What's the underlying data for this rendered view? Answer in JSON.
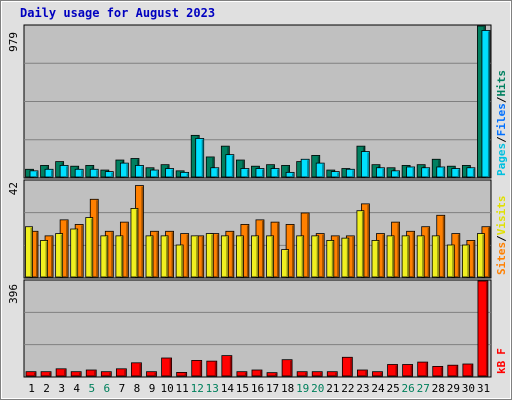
{
  "colors": {
    "frame_bg": "#e0e0e0",
    "plot_bg": "#c0c0c0",
    "grid": "#808080",
    "title": "#0000c0",
    "hits": "#008060",
    "files": "#00e0ff",
    "pages": "#00c0e0",
    "visits": "#f0f020",
    "sites": "#ff8000",
    "kbytes": "#ff0000",
    "axis_text": "#000000",
    "weekend_text": "#00805c"
  },
  "chart_data": [
    {
      "type": "bar",
      "title": "Daily usage for August 2023",
      "categories": [
        "1",
        "2",
        "3",
        "4",
        "5",
        "6",
        "7",
        "8",
        "9",
        "10",
        "11",
        "12",
        "13",
        "14",
        "15",
        "16",
        "17",
        "18",
        "19",
        "20",
        "21",
        "22",
        "23",
        "24",
        "25",
        "26",
        "27",
        "28",
        "29",
        "30",
        "31"
      ],
      "weekend_days": [
        "5",
        "6",
        "12",
        "13",
        "19",
        "20",
        "26",
        "27"
      ],
      "ymax_label": "979",
      "ylim": [
        0,
        979
      ],
      "legend": [
        "Pages",
        "/",
        "Files",
        "/",
        "Hits"
      ],
      "series": [
        {
          "name": "Hits",
          "values": [
            50,
            75,
            100,
            70,
            75,
            45,
            110,
            120,
            60,
            80,
            40,
            270,
            130,
            200,
            110,
            70,
            80,
            75,
            100,
            140,
            45,
            55,
            200,
            80,
            60,
            75,
            80,
            115,
            70,
            75,
            979
          ]
        },
        {
          "name": "Files",
          "values": [
            40,
            50,
            75,
            50,
            50,
            35,
            90,
            75,
            45,
            55,
            30,
            250,
            60,
            145,
            55,
            55,
            55,
            30,
            115,
            90,
            35,
            50,
            165,
            60,
            40,
            65,
            60,
            65,
            55,
            60,
            950
          ]
        },
        {
          "name": "Pages",
          "values": [
            0,
            0,
            0,
            0,
            0,
            0,
            0,
            0,
            0,
            0,
            0,
            0,
            0,
            0,
            0,
            0,
            0,
            0,
            0,
            0,
            0,
            0,
            0,
            0,
            0,
            0,
            0,
            0,
            0,
            0,
            0
          ]
        }
      ]
    },
    {
      "type": "bar",
      "categories": [
        "1",
        "2",
        "3",
        "4",
        "5",
        "6",
        "7",
        "8",
        "9",
        "10",
        "11",
        "12",
        "13",
        "14",
        "15",
        "16",
        "17",
        "18",
        "19",
        "20",
        "21",
        "22",
        "23",
        "24",
        "25",
        "26",
        "27",
        "28",
        "29",
        "30",
        "31"
      ],
      "ymax_label": "42",
      "ylim": [
        0,
        42
      ],
      "legend": [
        "Sites",
        "/",
        "Visits"
      ],
      "series": [
        {
          "name": "Visits",
          "values": [
            22,
            16,
            19,
            21,
            26,
            18,
            18,
            30,
            18,
            18,
            14,
            18,
            19,
            18,
            18,
            18,
            18,
            12,
            18,
            18,
            16,
            17,
            29,
            16,
            18,
            18,
            18,
            18,
            14,
            14,
            19
          ]
        },
        {
          "name": "Sites",
          "values": [
            20,
            18,
            25,
            23,
            34,
            20,
            24,
            40,
            20,
            20,
            19,
            18,
            19,
            20,
            23,
            25,
            24,
            23,
            28,
            19,
            18,
            18,
            32,
            19,
            24,
            20,
            22,
            27,
            19,
            16,
            22
          ]
        }
      ]
    },
    {
      "type": "bar",
      "categories": [
        "1",
        "2",
        "3",
        "4",
        "5",
        "6",
        "7",
        "8",
        "9",
        "10",
        "11",
        "12",
        "13",
        "14",
        "15",
        "16",
        "17",
        "18",
        "19",
        "20",
        "21",
        "22",
        "23",
        "24",
        "25",
        "26",
        "27",
        "28",
        "29",
        "30",
        "31"
      ],
      "ymax_label": "396",
      "ylim": [
        0,
        396
      ],
      "legend": [
        "kB",
        "F"
      ],
      "series": [
        {
          "name": "kB F",
          "values": [
            18,
            18,
            30,
            18,
            25,
            18,
            30,
            55,
            18,
            75,
            15,
            65,
            62,
            85,
            18,
            25,
            14,
            68,
            18,
            18,
            18,
            78,
            25,
            18,
            48,
            48,
            58,
            40,
            45,
            50,
            396
          ]
        }
      ]
    }
  ]
}
